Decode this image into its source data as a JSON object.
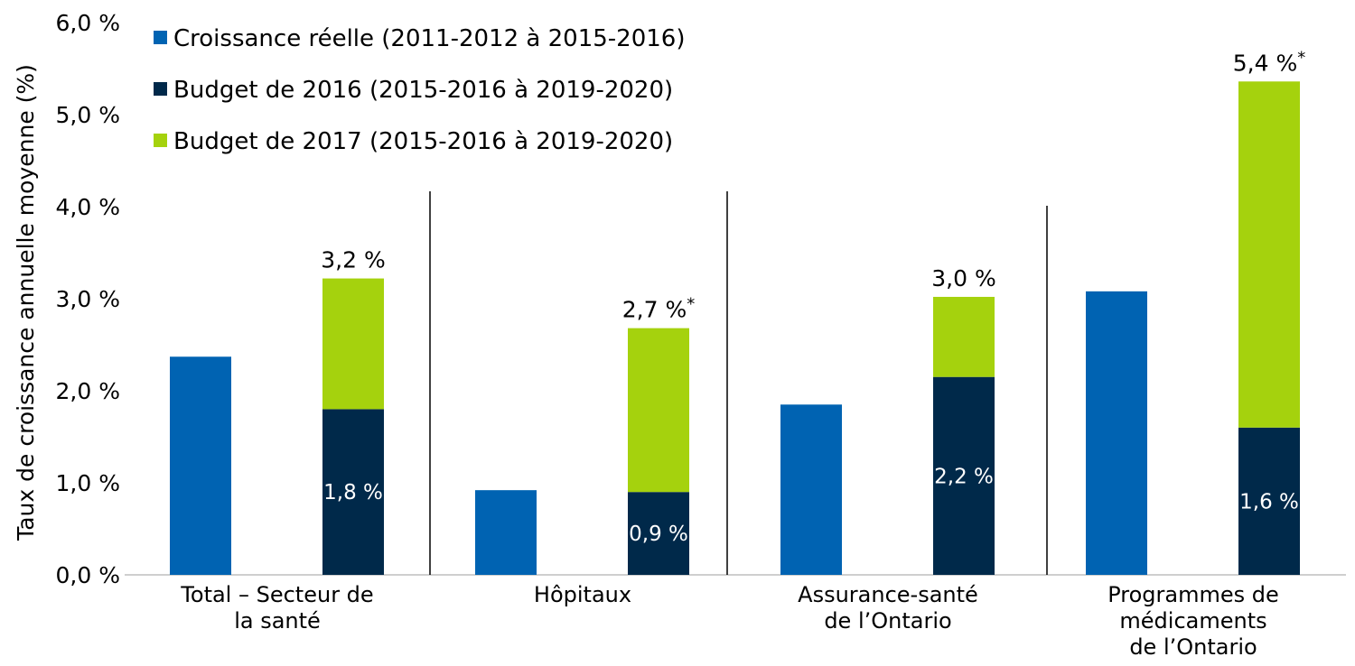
{
  "chart_data": {
    "type": "bar",
    "title": "",
    "xlabel": "",
    "ylabel": "Taux de croissance annuelle moyenne (%)",
    "ylim": [
      0,
      6
    ],
    "yticks": [
      "0,0 %",
      "1,0 %",
      "2,0 %",
      "3,0 %",
      "4,0 %",
      "5,0 %",
      "6,0 %"
    ],
    "grid": false,
    "legend_position": "top-left",
    "categories": [
      {
        "lines": [
          "Total – Secteur de",
          "la santé"
        ]
      },
      {
        "lines": [
          "Hôpitaux"
        ]
      },
      {
        "lines": [
          "Assurance-santé",
          "de l’Ontario"
        ]
      },
      {
        "lines": [
          "Programmes de",
          "médicaments",
          "de l’Ontario"
        ]
      }
    ],
    "series": [
      {
        "name": "Croissance réelle (2011-2012 à 2015-2016)",
        "color": "#0063b2",
        "values": [
          2.37,
          0.92,
          1.85,
          3.08
        ]
      },
      {
        "name": "Budget de 2016 (2015-2016 à 2019-2020)",
        "color": "#00294a",
        "values": [
          1.8,
          0.9,
          2.15,
          1.6
        ],
        "labels": [
          "1,8 %",
          "0,9 %",
          "2,2 %",
          "1,6 %"
        ]
      },
      {
        "name": "Budget de 2017 (2015-2016 à 2019-2020)",
        "color": "#a5d20d",
        "values": [
          1.42,
          1.78,
          0.87,
          3.76
        ]
      }
    ],
    "totals": [
      {
        "value": 3.22,
        "text": "3,2 %",
        "asterisk": ""
      },
      {
        "value": 2.68,
        "text": "2,7 %",
        "asterisk": "*"
      },
      {
        "value": 3.02,
        "text": "3,0 %",
        "asterisk": ""
      },
      {
        "value": 5.36,
        "text": "5,4 %",
        "asterisk": "*"
      }
    ]
  }
}
